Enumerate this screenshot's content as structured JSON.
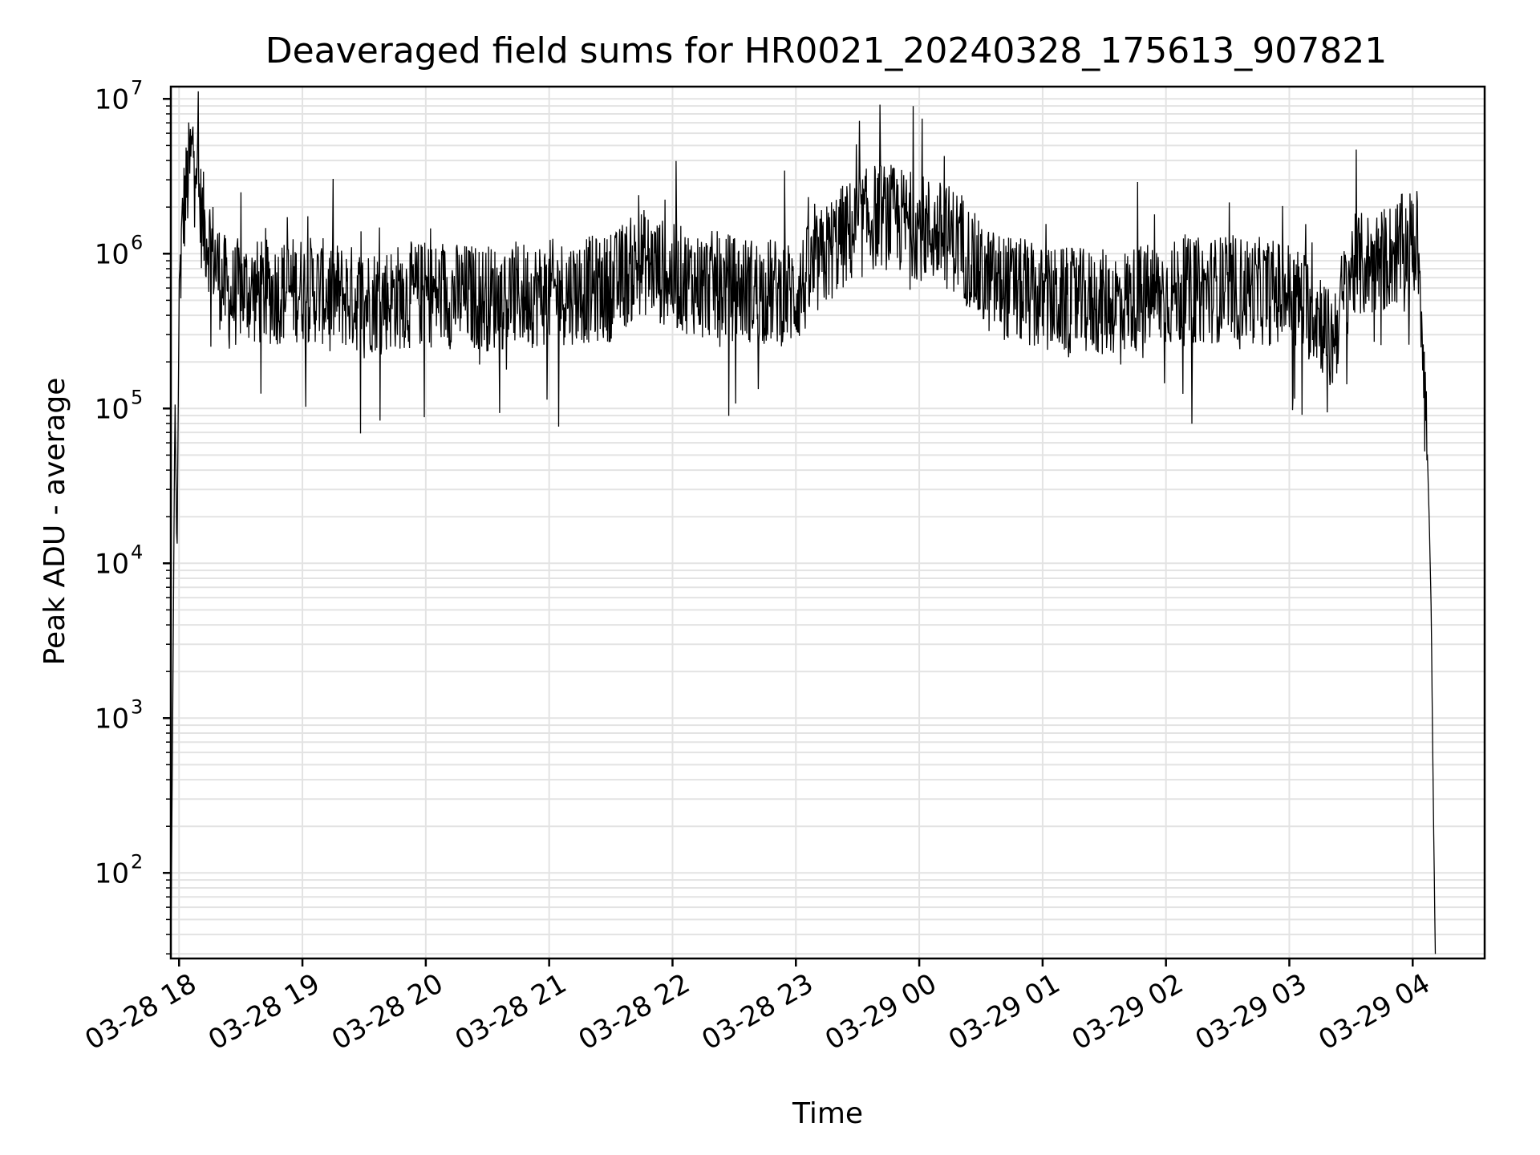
{
  "chart_data": {
    "type": "line",
    "title": "Deaveraged field sums for HR0021_20240328_175613_907821",
    "xlabel": "Time",
    "ylabel": "Peak ADU - average",
    "yscale": "log",
    "ylim": [
      28,
      12000000
    ],
    "xlim": [
      "2024-03-28 17:56",
      "2024-03-29 04:35"
    ],
    "grid": true,
    "line_color": "#000000",
    "x_ticks": [
      "03-28 18",
      "03-28 19",
      "03-28 20",
      "03-28 21",
      "03-28 22",
      "03-28 23",
      "03-29 00",
      "03-29 01",
      "03-29 02",
      "03-29 03",
      "03-29 04"
    ],
    "y_ticks": [
      {
        "base": "10",
        "exp": "2",
        "value": 100
      },
      {
        "base": "10",
        "exp": "3",
        "value": 1000
      },
      {
        "base": "10",
        "exp": "4",
        "value": 10000
      },
      {
        "base": "10",
        "exp": "5",
        "value": 100000
      },
      {
        "base": "10",
        "exp": "6",
        "value": 1000000
      },
      {
        "base": "10",
        "exp": "7",
        "value": 10000000
      }
    ],
    "series": [
      {
        "x": [
          "2024-03-28 17:56",
          "2024-03-28 17:57",
          "2024-03-28 17:58",
          "2024-03-28 17:59",
          "2024-03-28 18:00",
          "2024-03-28 18:02",
          "2024-03-28 18:05",
          "2024-03-28 18:08",
          "2024-03-28 18:10",
          "2024-03-28 18:12",
          "2024-03-28 18:15",
          "2024-03-28 18:20",
          "2024-03-28 18:25",
          "2024-03-28 18:30",
          "2024-03-28 18:40",
          "2024-03-28 19:00",
          "2024-03-28 19:30",
          "2024-03-28 20:00",
          "2024-03-28 20:30",
          "2024-03-28 21:00",
          "2024-03-28 21:30",
          "2024-03-28 21:45",
          "2024-03-28 22:00",
          "2024-03-28 22:30",
          "2024-03-28 23:00",
          "2024-03-28 23:20",
          "2024-03-28 23:40",
          "2024-03-29 00:00",
          "2024-03-29 00:20",
          "2024-03-29 00:30",
          "2024-03-29 01:00",
          "2024-03-29 01:30",
          "2024-03-29 02:00",
          "2024-03-29 02:30",
          "2024-03-29 03:00",
          "2024-03-29 03:15",
          "2024-03-29 03:20",
          "2024-03-29 03:30",
          "2024-03-29 03:45",
          "2024-03-29 04:00",
          "2024-03-29 04:03",
          "2024-03-29 04:05",
          "2024-03-29 04:07",
          "2024-03-29 04:08",
          "2024-03-29 04:09",
          "2024-03-29 04:10",
          "2024-03-29 04:11"
        ],
        "values": [
          30,
          1500,
          120000,
          10000,
          500000,
          1800000,
          3500000,
          6000000,
          2000000,
          1500000,
          1200000,
          700000,
          500000,
          600000,
          550000,
          600000,
          500000,
          550000,
          520000,
          560000,
          600000,
          900000,
          700000,
          600000,
          550000,
          1200000,
          1800000,
          1500000,
          1200000,
          700000,
          500000,
          480000,
          550000,
          600000,
          550000,
          400000,
          250000,
          800000,
          900000,
          1200000,
          1000000,
          300000,
          60000,
          20000,
          5000,
          300,
          30
        ]
      }
    ]
  }
}
